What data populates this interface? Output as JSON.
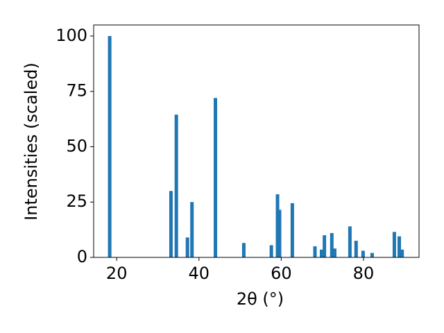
{
  "chart_data": {
    "type": "bar",
    "x_label": "2θ (°)",
    "y_label": "Intensities (scaled)",
    "x": [
      18.3,
      33.2,
      34.5,
      37.2,
      38.3,
      44.0,
      50.9,
      57.6,
      59.1,
      59.6,
      62.7,
      68.2,
      69.8,
      70.5,
      72.3,
      73.0,
      76.7,
      78.2,
      79.9,
      82.1,
      87.5,
      88.7,
      89.4
    ],
    "values": [
      100,
      30,
      64.5,
      9,
      25,
      72,
      6.5,
      5.5,
      28.5,
      21.5,
      24.5,
      5,
      3.5,
      10,
      11,
      4,
      14,
      7.5,
      3,
      2,
      11.5,
      9.5,
      3.5
    ],
    "color": "#1f77b4",
    "xlim": [
      14.4,
      93.5
    ],
    "xticks": [
      20,
      40,
      60,
      80
    ],
    "ylim": [
      0,
      105
    ],
    "yticks": [
      0,
      25,
      50,
      75,
      100
    ],
    "grid": false
  }
}
